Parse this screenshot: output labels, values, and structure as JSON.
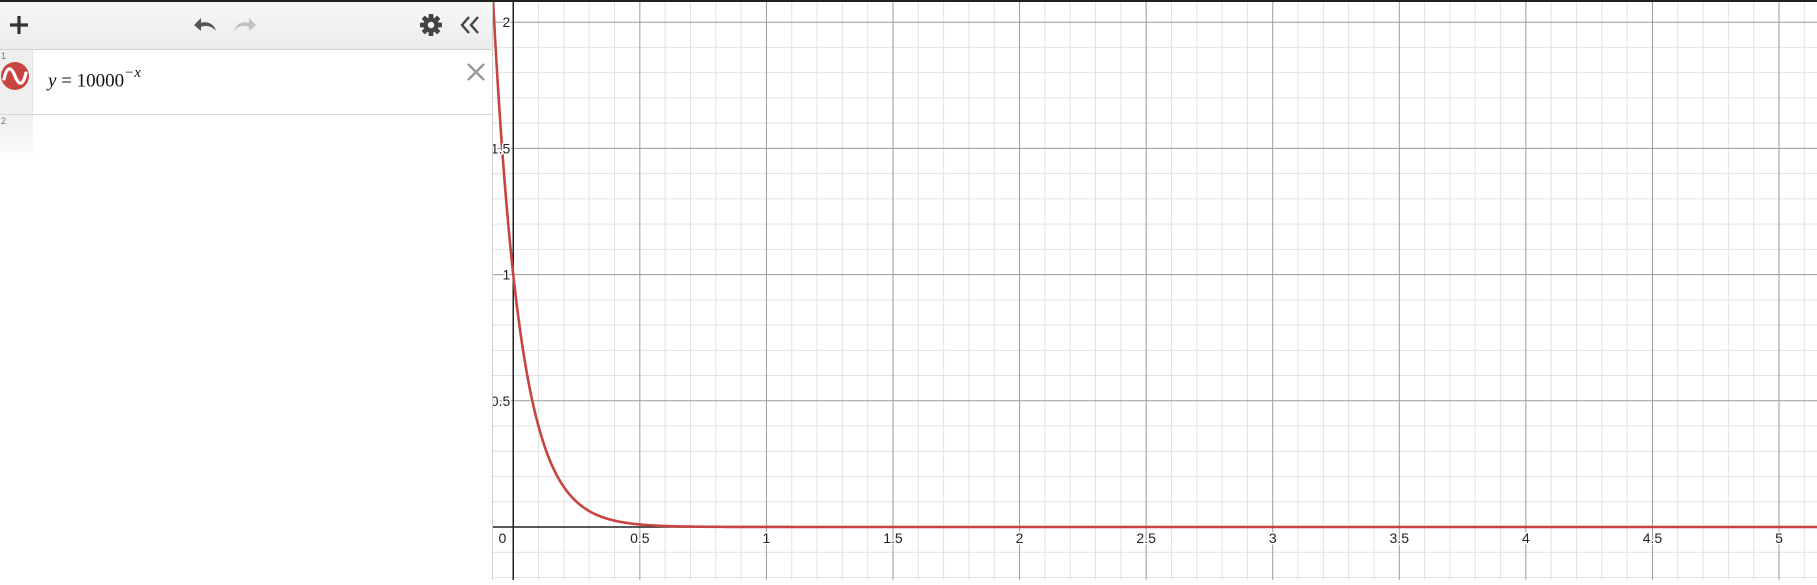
{
  "toolbar": {
    "add_icon": "plus-icon",
    "undo_icon": "undo-icon",
    "redo_icon": "redo-icon",
    "settings_icon": "gear-icon",
    "collapse_icon": "double-chevron-left-icon"
  },
  "expressions": [
    {
      "index": "1",
      "color": "#c74440",
      "lhs": "y",
      "equals": "=",
      "base": "10000",
      "exponent": "−x"
    },
    {
      "index": "2"
    }
  ],
  "colors": {
    "curve": "#c74440",
    "axis": "#222222",
    "major_grid": "#9a9a9a",
    "minor_grid": "#e2e2e2"
  },
  "chart_data": {
    "type": "line",
    "function": "y = 10000^(-x)",
    "xlim": [
      -0.08,
      5.15
    ],
    "ylim": [
      -0.21,
      2.08
    ],
    "x_ticks": [
      {
        "value": 0,
        "label": "0"
      },
      {
        "value": 0.5,
        "label": "0.5"
      },
      {
        "value": 1,
        "label": "1"
      },
      {
        "value": 1.5,
        "label": "1.5"
      },
      {
        "value": 2,
        "label": "2"
      },
      {
        "value": 2.5,
        "label": "2.5"
      },
      {
        "value": 3,
        "label": "3"
      },
      {
        "value": 3.5,
        "label": "3.5"
      },
      {
        "value": 4,
        "label": "4"
      },
      {
        "value": 4.5,
        "label": "4.5"
      },
      {
        "value": 5,
        "label": "5"
      }
    ],
    "y_ticks": [
      {
        "value": 0.5,
        "label": "0.5"
      },
      {
        "value": 1,
        "label": "1"
      },
      {
        "value": 1.5,
        "label": "1.5"
      },
      {
        "value": 2,
        "label": "2"
      }
    ],
    "major_step": 0.5,
    "minor_step": 0.1,
    "grid": true
  }
}
